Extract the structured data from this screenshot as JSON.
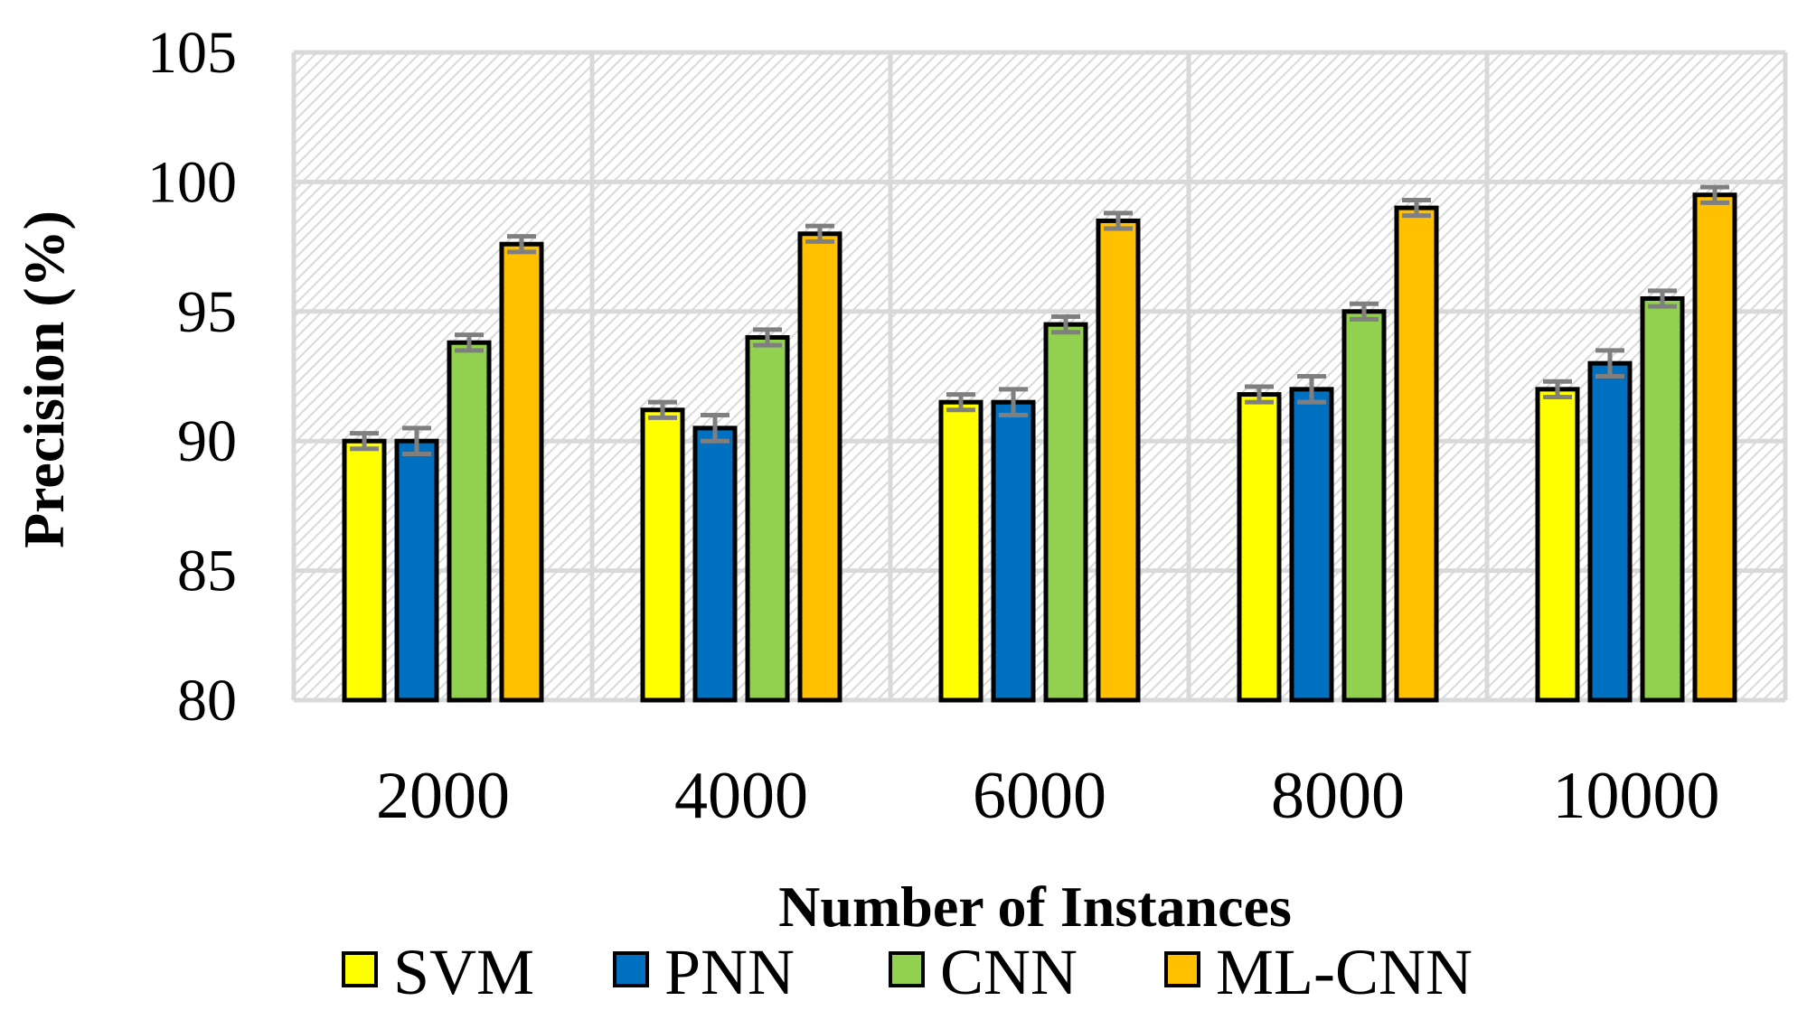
{
  "chart_data": {
    "type": "bar",
    "xlabel": "Number of Instances",
    "ylabel": "Precision (%)",
    "categories": [
      "2000",
      "4000",
      "6000",
      "8000",
      "10000"
    ],
    "ylim": [
      80,
      105
    ],
    "yticks": [
      "80",
      "85",
      "90",
      "95",
      "100",
      "105"
    ],
    "grid": true,
    "legend_position": "bottom",
    "series": [
      {
        "name": "SVM",
        "color": "#ffff00",
        "values": [
          90.0,
          91.2,
          91.5,
          91.8,
          92.0
        ],
        "errors": [
          0.3,
          0.3,
          0.3,
          0.3,
          0.3
        ]
      },
      {
        "name": "PNN",
        "color": "#0070c0",
        "values": [
          90.0,
          90.5,
          91.5,
          92.0,
          93.0
        ],
        "errors": [
          0.5,
          0.5,
          0.5,
          0.5,
          0.5
        ]
      },
      {
        "name": "CNN",
        "color": "#92d050",
        "values": [
          93.8,
          94.0,
          94.5,
          95.0,
          95.5
        ],
        "errors": [
          0.3,
          0.3,
          0.3,
          0.3,
          0.3
        ]
      },
      {
        "name": "ML-CNN",
        "color": "#ffc000",
        "values": [
          97.6,
          98.0,
          98.5,
          99.0,
          99.5
        ],
        "errors": [
          0.3,
          0.3,
          0.3,
          0.3,
          0.3
        ]
      }
    ]
  }
}
